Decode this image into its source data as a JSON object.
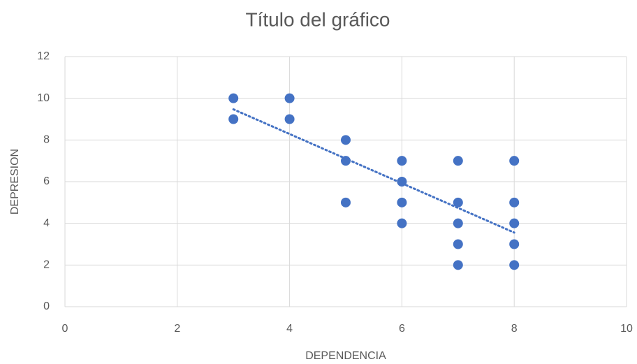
{
  "chart_data": {
    "type": "scatter",
    "title": "Título del gráfico",
    "x_label": "DEPENDENCIA",
    "y_label": "DEPRESION",
    "x": [
      3,
      3,
      4,
      4,
      5,
      5,
      5,
      6,
      6,
      6,
      6,
      7,
      7,
      7,
      7,
      7,
      8,
      8,
      8,
      8,
      8
    ],
    "values": [
      10,
      9,
      10,
      9,
      8,
      7,
      5,
      7,
      6,
      5,
      4,
      7,
      5,
      4,
      3,
      2,
      7,
      5,
      4,
      3,
      2
    ],
    "color": "#4472c4",
    "trendline": "linear",
    "xlim": [
      0,
      10
    ],
    "xticks": [
      0,
      2,
      4,
      6,
      8,
      10
    ],
    "ylim": [
      0,
      12
    ],
    "yticks": [
      0,
      2,
      4,
      6,
      8,
      10,
      12
    ],
    "grid": true
  }
}
